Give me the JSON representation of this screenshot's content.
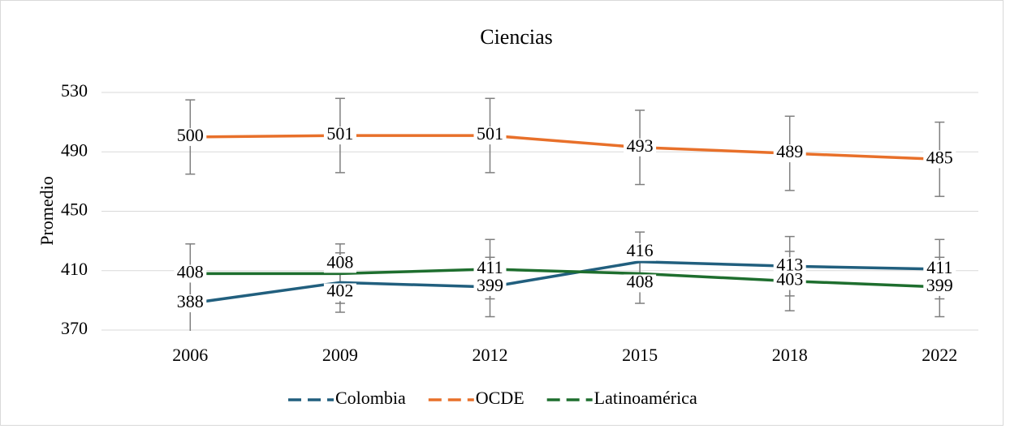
{
  "chart_data": {
    "type": "line",
    "title": "Ciencias",
    "y_label": "Promedio",
    "categories": [
      "2006",
      "2009",
      "2012",
      "2015",
      "2018",
      "2022"
    ],
    "series": [
      {
        "name": "Colombia",
        "color": "#215f7e",
        "values": [
          388,
          402,
          399,
          416,
          413,
          411
        ],
        "errors": [
          20,
          20,
          20,
          20,
          20,
          20
        ]
      },
      {
        "name": "OCDE",
        "color": "#e8702a",
        "values": [
          500,
          501,
          501,
          493,
          489,
          485
        ],
        "errors": [
          25,
          25,
          25,
          25,
          25,
          25
        ]
      },
      {
        "name": "Latinoamérica",
        "color": "#1e6e2e",
        "values": [
          408,
          408,
          411,
          408,
          403,
          399
        ],
        "errors": [
          20,
          20,
          20,
          20,
          20,
          20
        ]
      }
    ],
    "ylim": [
      370,
      530
    ],
    "yticks": [
      370,
      410,
      450,
      490,
      530
    ],
    "grid": true,
    "legend": "bottom"
  }
}
